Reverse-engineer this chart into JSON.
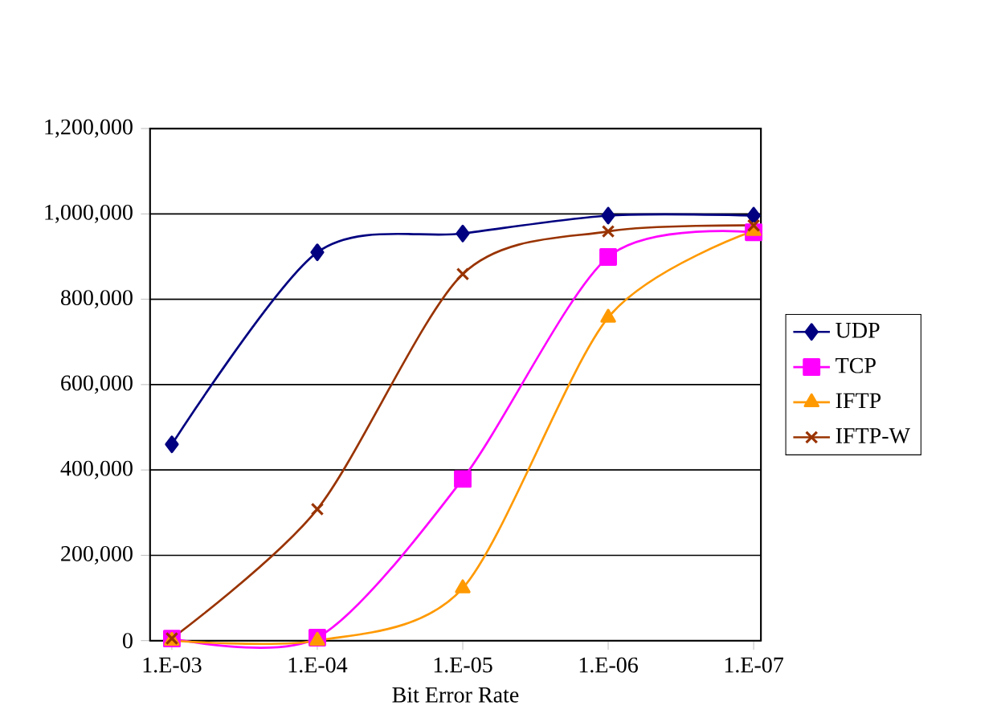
{
  "chart_data": {
    "type": "line",
    "xlabel": "Bit Error Rate",
    "categories": [
      "1.E-03",
      "1.E-04",
      "1.E-05",
      "1.E-06",
      "1.E-07"
    ],
    "series": [
      {
        "name": "UDP",
        "color": "#000080",
        "marker": "diamond",
        "values": [
          460000,
          910000,
          954000,
          996000,
          996000
        ]
      },
      {
        "name": "TCP",
        "color": "#ff00ff",
        "marker": "square",
        "values": [
          5000,
          7000,
          379000,
          899000,
          957000
        ]
      },
      {
        "name": "IFTP",
        "color": "#ff9900",
        "marker": "triangle",
        "values": [
          0,
          0,
          123000,
          757000,
          960000
        ]
      },
      {
        "name": "IFTP-W",
        "color": "#993300",
        "marker": "cross",
        "values": [
          5000,
          308000,
          859000,
          959000,
          973000
        ]
      }
    ],
    "ylim": [
      0,
      1200000
    ],
    "yticks": [
      {
        "value": 0,
        "label": "0"
      },
      {
        "value": 200000,
        "label": "200,000"
      },
      {
        "value": 400000,
        "label": "400,000"
      },
      {
        "value": 600000,
        "label": "600,000"
      },
      {
        "value": 800000,
        "label": "800,000"
      },
      {
        "value": 1000000,
        "label": "1,000,000"
      },
      {
        "value": 1200000,
        "label": "1,200,000"
      }
    ],
    "grid": "y",
    "legend": "right"
  }
}
